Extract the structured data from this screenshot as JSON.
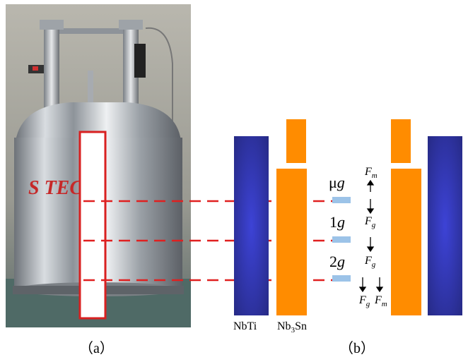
{
  "panel_a": {
    "caption": "（a）",
    "brand_text": "S        TEC"
  },
  "panel_b": {
    "caption": "（b）",
    "coil_left_label": "NbTi",
    "coil_right_label_base": "Nb",
    "coil_right_label_sub": "3",
    "coil_right_label_tail": "Sn",
    "gravity_levels": [
      {
        "prefix": "μ",
        "g": "g"
      },
      {
        "prefix": "1",
        "g": "g"
      },
      {
        "prefix": "2",
        "g": "g"
      }
    ],
    "forces": {
      "F": "F",
      "sub_m": "m",
      "sub_g": "g"
    }
  },
  "colors": {
    "nbti_blue": "#2b2f8f",
    "nb3sn_orange": "#ff8c00",
    "dashed_red": "#e02020",
    "sample_blue": "#9cc3e8",
    "cryostat_steel": "#b8bcc2"
  }
}
